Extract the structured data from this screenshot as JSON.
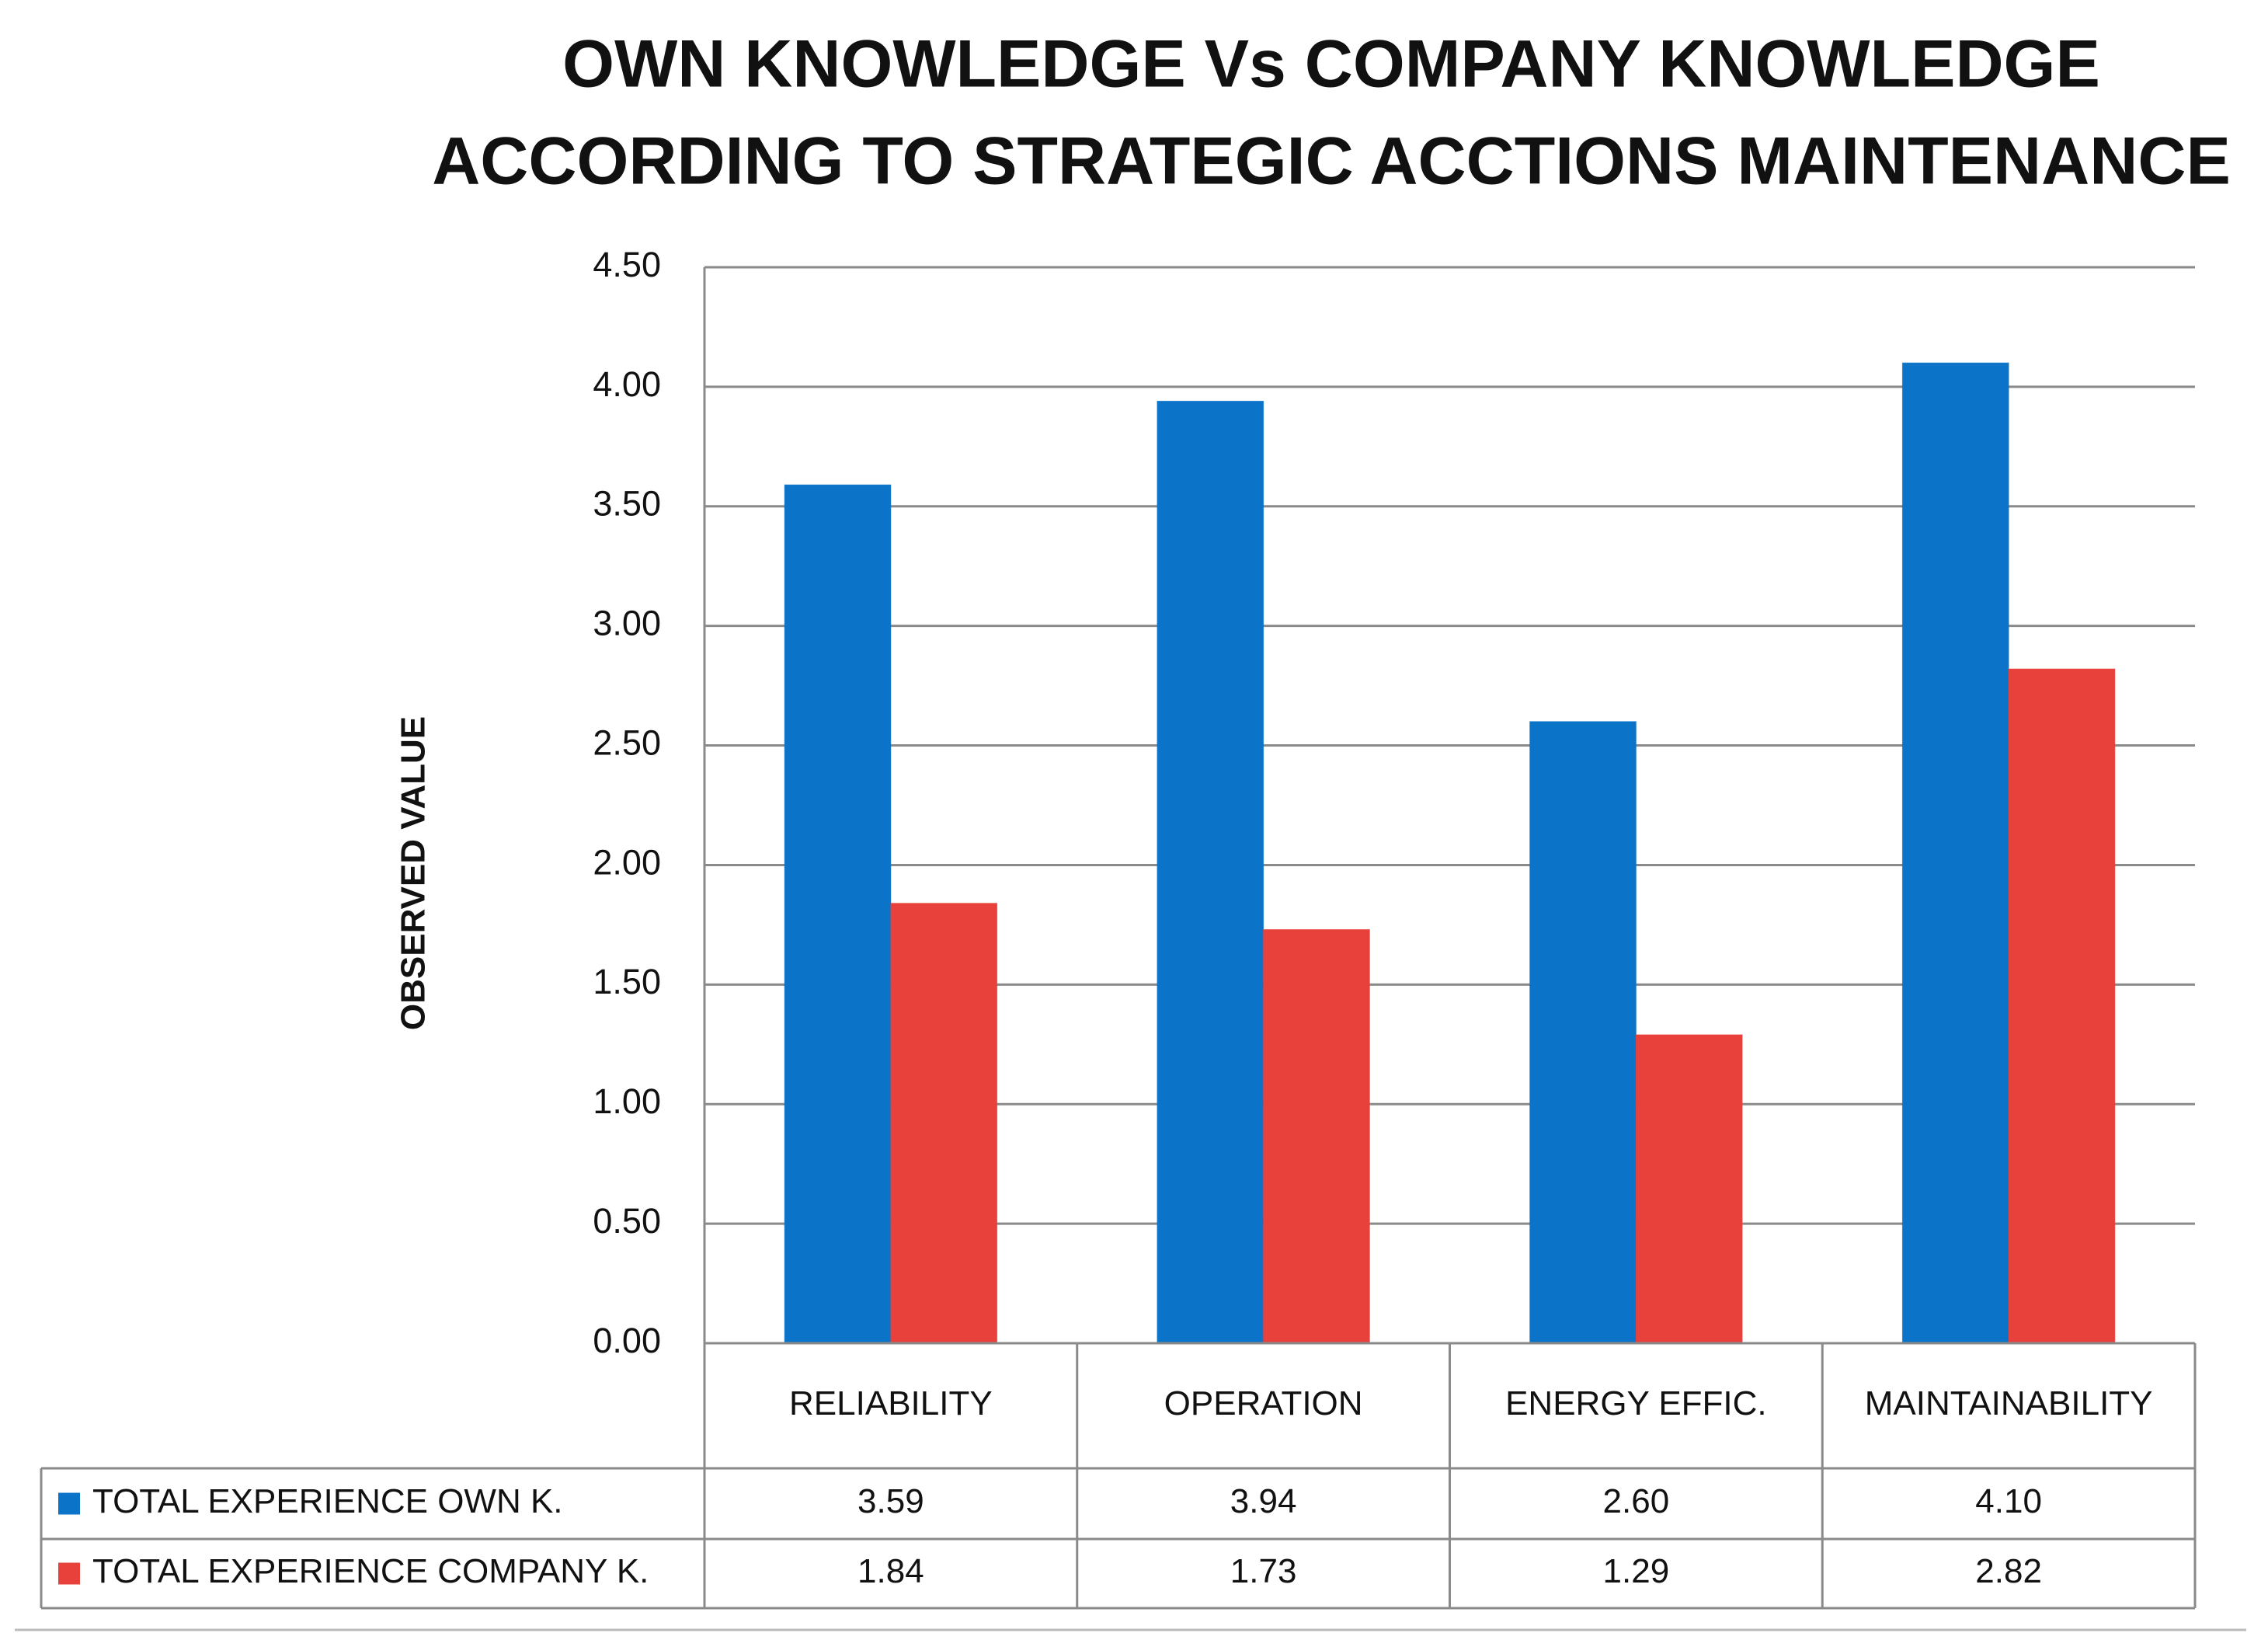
{
  "chart_data": {
    "type": "bar",
    "title": [
      "OWN KNOWLEDGE Vs COMPANY KNOWLEDGE",
      "ACCORDING TO STRATEGIC ACCTIONS MAINTENANCE"
    ],
    "y_label": "OBSERVED VALUE",
    "categories": [
      "RELIABILITY",
      "OPERATION",
      "ENERGY EFFIC.",
      "MAINTAINABILITY"
    ],
    "series": [
      {
        "name": "TOTAL EXPERIENCE OWN K.",
        "color": "#0b74c8",
        "values": [
          3.59,
          3.94,
          2.6,
          4.1
        ],
        "value_labels": [
          "3.59",
          "3.94",
          "2.60",
          "4.10"
        ]
      },
      {
        "name": "TOTAL EXPERIENCE COMPANY K.",
        "color": "#e8403b",
        "values": [
          1.84,
          1.73,
          1.29,
          2.82
        ],
        "value_labels": [
          "1.84",
          "1.73",
          "1.29",
          "2.82"
        ]
      }
    ],
    "ylim": [
      0,
      4.5
    ],
    "yticks": [
      {
        "value": 0,
        "label": "0.00"
      },
      {
        "value": 0.5,
        "label": "0.50"
      },
      {
        "value": 1,
        "label": "1.00"
      },
      {
        "value": 1.5,
        "label": "1.50"
      },
      {
        "value": 2,
        "label": "2.00"
      },
      {
        "value": 2.5,
        "label": "2.50"
      },
      {
        "value": 3,
        "label": "3.00"
      },
      {
        "value": 3.5,
        "label": "3.50"
      },
      {
        "value": 4,
        "label": "4.00"
      },
      {
        "value": 4.5,
        "label": "4.50"
      }
    ],
    "grid": true,
    "data_table": true
  }
}
